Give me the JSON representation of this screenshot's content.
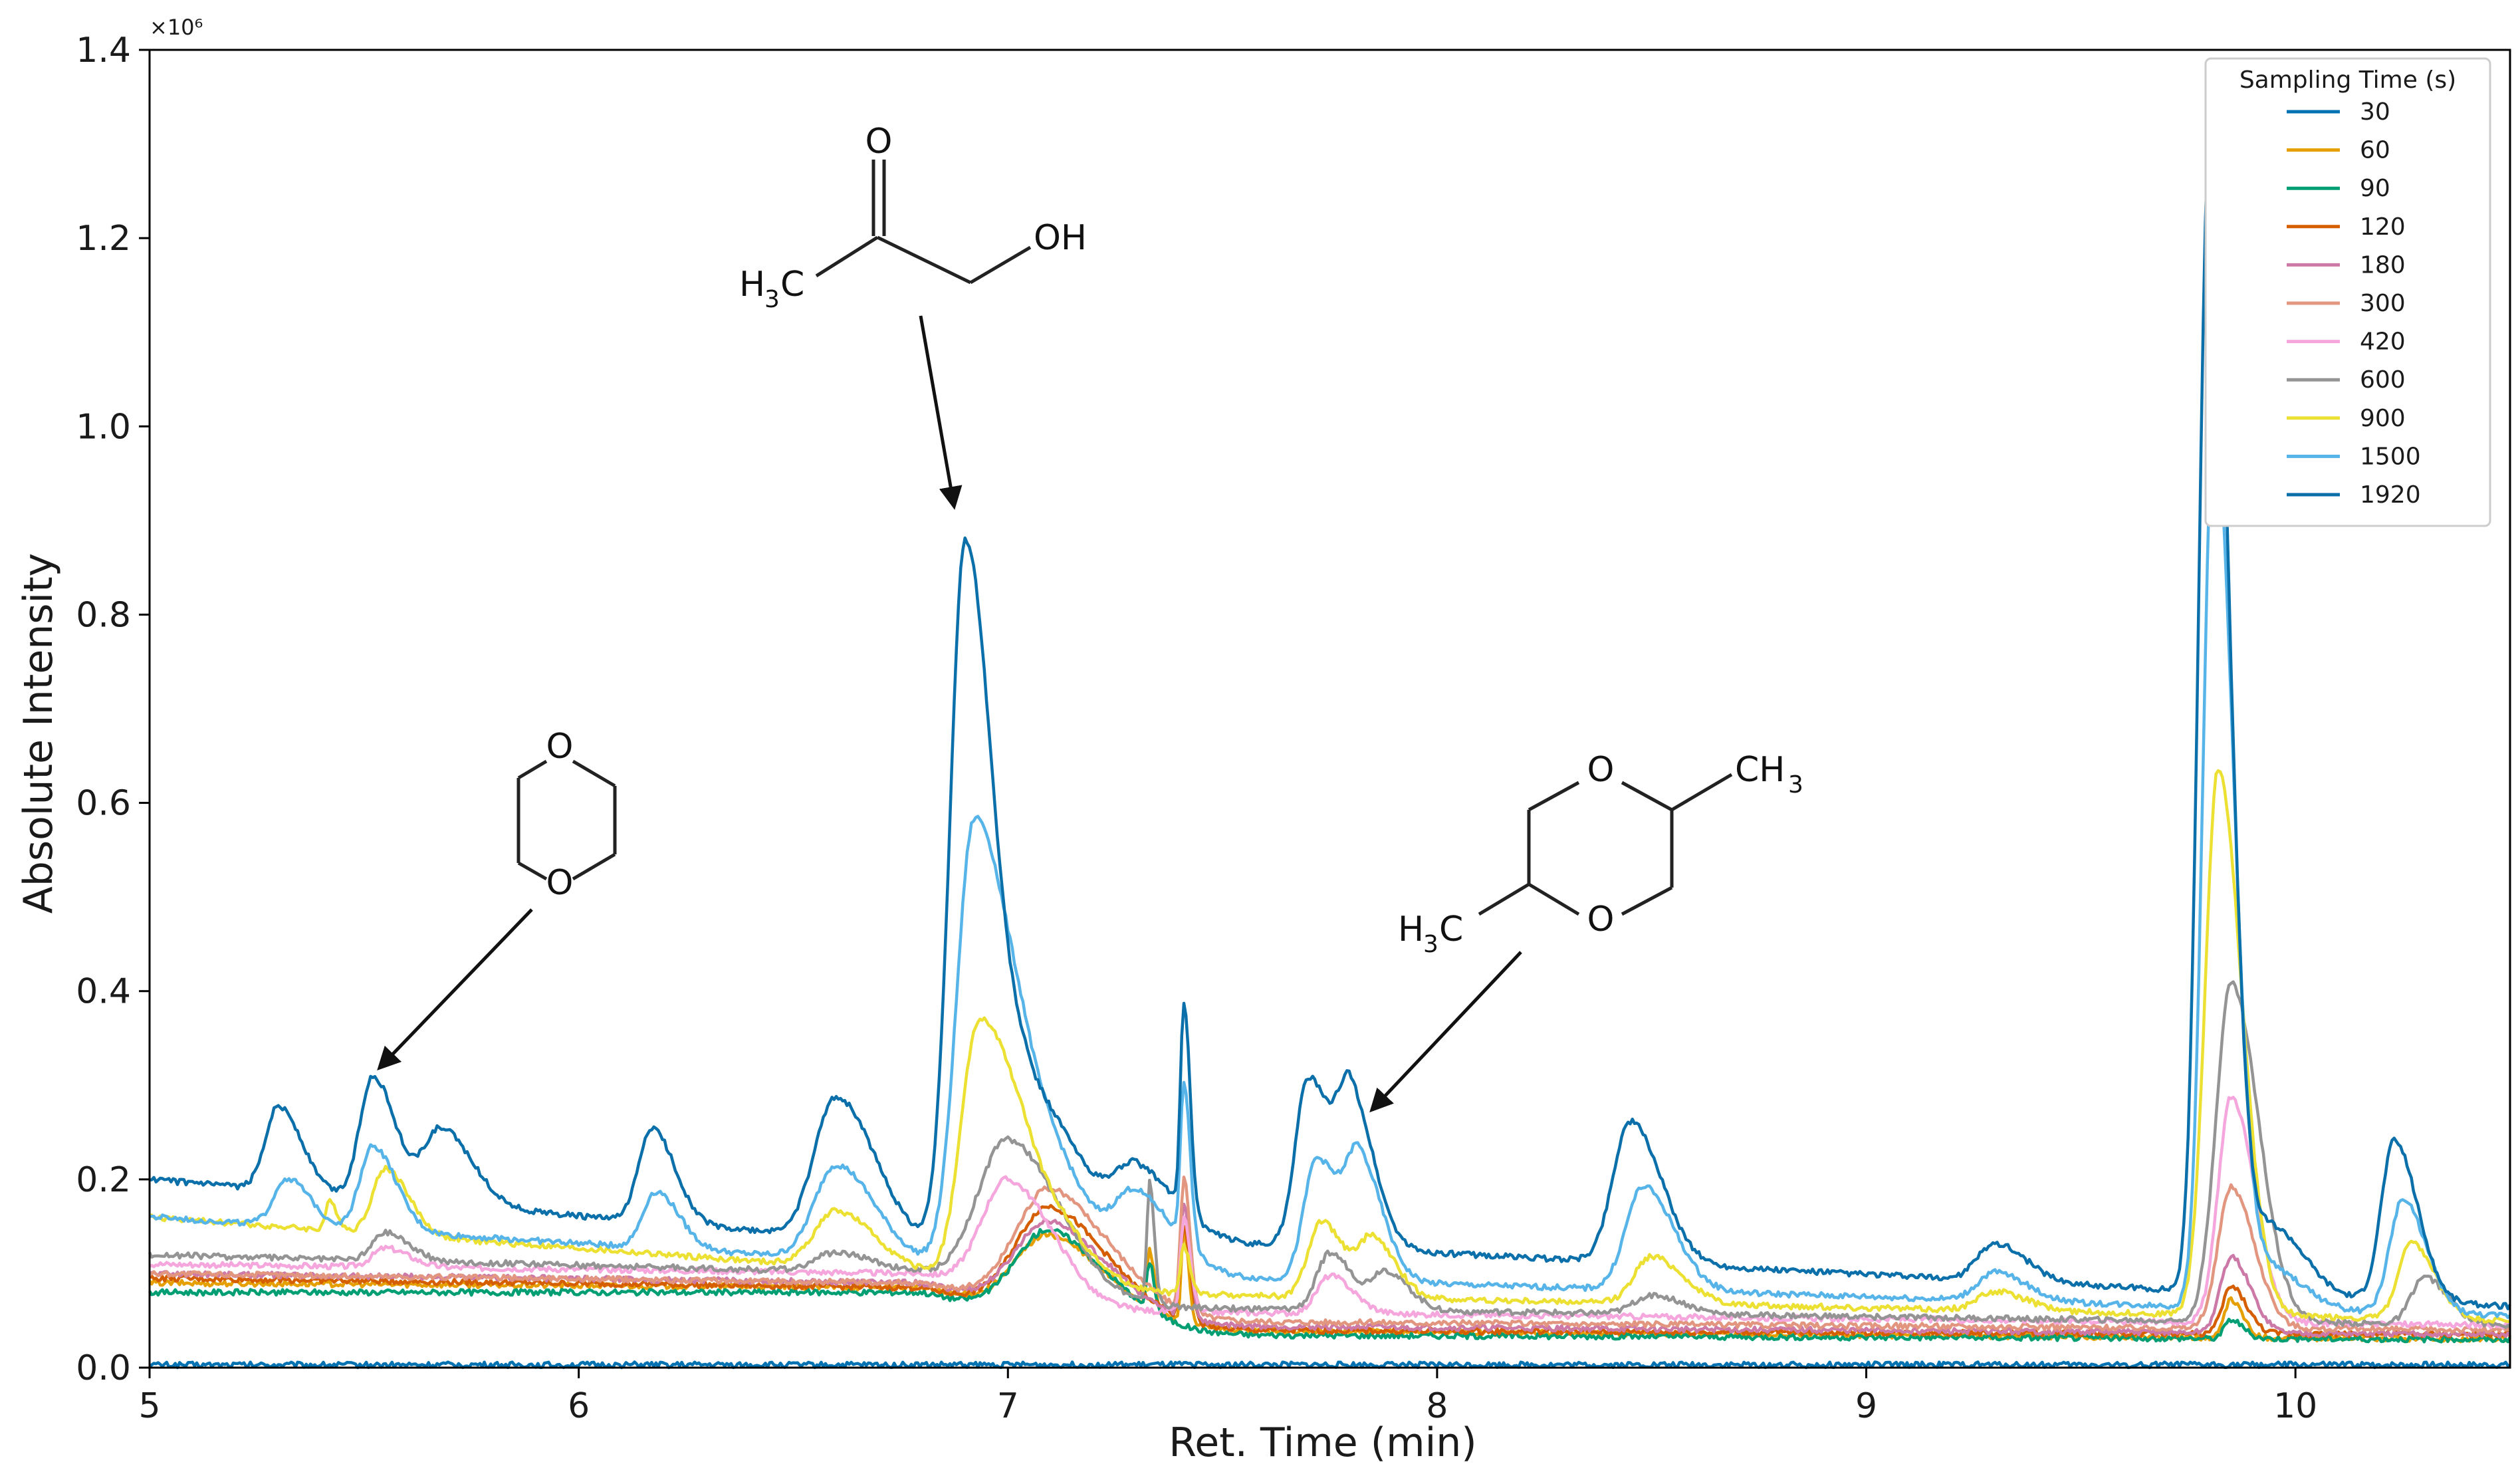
{
  "chart_data": {
    "type": "line",
    "xlabel": "Ret. Time (min)",
    "ylabel": "Absolute Intensity",
    "y_exponent_label": "×10⁶",
    "xlim": [
      5,
      10.5
    ],
    "ylim": [
      0,
      1.4
    ],
    "x_ticks": [
      5,
      6,
      7,
      8,
      9,
      10
    ],
    "x_tick_labels": [
      "5",
      "6",
      "7",
      "8",
      "9",
      "10"
    ],
    "y_ticks": [
      0,
      0.2,
      0.4,
      0.6,
      0.8,
      1.0,
      1.2,
      1.4
    ],
    "y_tick_labels": [
      "0.0",
      "0.2",
      "0.4",
      "0.6",
      "0.8",
      "1.0",
      "1.2",
      "1.4"
    ],
    "grid": false,
    "legend": {
      "title": "Sampling Time (s)",
      "placement": "top-right"
    },
    "series": [
      {
        "name": "30",
        "color": "#0072b2",
        "baseline": [
          [
            5,
            0.003
          ],
          [
            10.5,
            0.003
          ]
        ],
        "peaks": []
      },
      {
        "name": "60",
        "color": "#e69f00",
        "baseline": [
          [
            5,
            0.09
          ],
          [
            6.8,
            0.085
          ],
          [
            7.2,
            0.04
          ],
          [
            10.5,
            0.03
          ]
        ],
        "peaks": [
          [
            7.1,
            0.09,
            0.08
          ],
          [
            7.33,
            0.06,
            0.006
          ],
          [
            7.41,
            0.1,
            0.006
          ],
          [
            9.85,
            0.04,
            0.015
          ]
        ]
      },
      {
        "name": "90",
        "color": "#009e73",
        "baseline": [
          [
            5,
            0.08
          ],
          [
            6.8,
            0.08
          ],
          [
            7.2,
            0.035
          ],
          [
            10.5,
            0.03
          ]
        ],
        "peaks": [
          [
            7.1,
            0.1,
            0.08
          ],
          [
            7.33,
            0.05,
            0.006
          ],
          [
            9.85,
            0.02,
            0.015
          ]
        ]
      },
      {
        "name": "120",
        "color": "#d55e00",
        "baseline": [
          [
            5,
            0.095
          ],
          [
            6.8,
            0.085
          ],
          [
            7.2,
            0.04
          ],
          [
            10.5,
            0.035
          ]
        ],
        "peaks": [
          [
            7.1,
            0.12,
            0.08
          ],
          [
            7.41,
            0.1,
            0.008
          ],
          [
            9.85,
            0.05,
            0.02
          ]
        ]
      },
      {
        "name": "180",
        "color": "#cc79a7",
        "baseline": [
          [
            5,
            0.1
          ],
          [
            6.8,
            0.09
          ],
          [
            7.2,
            0.045
          ],
          [
            10.5,
            0.035
          ]
        ],
        "peaks": [
          [
            7.1,
            0.1,
            0.08
          ],
          [
            7.41,
            0.12,
            0.008
          ],
          [
            9.85,
            0.08,
            0.025
          ]
        ]
      },
      {
        "name": "300",
        "color": "#e3967f",
        "baseline": [
          [
            5,
            0.1
          ],
          [
            6.8,
            0.09
          ],
          [
            7.2,
            0.05
          ],
          [
            10.5,
            0.04
          ]
        ],
        "peaks": [
          [
            7.1,
            0.13,
            0.08
          ],
          [
            7.41,
            0.14,
            0.008
          ],
          [
            9.85,
            0.15,
            0.03
          ]
        ]
      },
      {
        "name": "420",
        "color": "#f5a6dc",
        "baseline": [
          [
            5,
            0.11
          ],
          [
            6.8,
            0.1
          ],
          [
            7.2,
            0.06
          ],
          [
            10.5,
            0.045
          ]
        ],
        "peaks": [
          [
            5.55,
            0.02,
            0.03
          ],
          [
            7.0,
            0.12,
            0.06
          ],
          [
            7.41,
            0.1,
            0.008
          ],
          [
            7.75,
            0.04,
            0.03
          ],
          [
            9.85,
            0.24,
            0.03
          ]
        ]
      },
      {
        "name": "600",
        "color": "#949494",
        "baseline": [
          [
            5,
            0.12
          ],
          [
            6.8,
            0.1
          ],
          [
            7.2,
            0.065
          ],
          [
            10.5,
            0.045
          ]
        ],
        "peaks": [
          [
            5.55,
            0.03,
            0.03
          ],
          [
            6.6,
            0.02,
            0.05
          ],
          [
            7.0,
            0.16,
            0.07
          ],
          [
            7.33,
            0.13,
            0.006
          ],
          [
            7.75,
            0.06,
            0.03
          ],
          [
            7.88,
            0.04,
            0.03
          ],
          [
            8.5,
            0.02,
            0.04
          ],
          [
            9.85,
            0.36,
            0.035
          ],
          [
            10.3,
            0.05,
            0.03
          ]
        ]
      },
      {
        "name": "900",
        "color": "#ece133",
        "baseline": [
          [
            5,
            0.16
          ],
          [
            6.8,
            0.1
          ],
          [
            7.2,
            0.08
          ],
          [
            10.5,
            0.05
          ]
        ],
        "peaks": [
          [
            5.42,
            0.03,
            0.01
          ],
          [
            5.55,
            0.07,
            0.03
          ],
          [
            6.6,
            0.06,
            0.05
          ],
          [
            6.93,
            0.26,
            0.04
          ],
          [
            7.05,
            0.1,
            0.06
          ],
          [
            7.41,
            0.05,
            0.008
          ],
          [
            7.73,
            0.08,
            0.03
          ],
          [
            7.85,
            0.06,
            0.03
          ],
          [
            8.5,
            0.05,
            0.04
          ],
          [
            9.3,
            0.02,
            0.04
          ],
          [
            9.82,
            0.58,
            0.03
          ],
          [
            10.27,
            0.08,
            0.03
          ]
        ]
      },
      {
        "name": "1500",
        "color": "#56b4e9",
        "baseline": [
          [
            5,
            0.16
          ],
          [
            6.8,
            0.11
          ],
          [
            7.2,
            0.1
          ],
          [
            10.5,
            0.055
          ]
        ],
        "peaks": [
          [
            5.32,
            0.05,
            0.03
          ],
          [
            5.52,
            0.09,
            0.03
          ],
          [
            6.18,
            0.06,
            0.03
          ],
          [
            6.6,
            0.1,
            0.05
          ],
          [
            6.92,
            0.46,
            0.04
          ],
          [
            7.05,
            0.16,
            0.06
          ],
          [
            7.3,
            0.08,
            0.05
          ],
          [
            7.41,
            0.17,
            0.008
          ],
          [
            7.72,
            0.13,
            0.03
          ],
          [
            7.82,
            0.12,
            0.03
          ],
          [
            8.48,
            0.11,
            0.04
          ],
          [
            9.3,
            0.03,
            0.04
          ],
          [
            9.81,
            0.95,
            0.025
          ],
          [
            9.95,
            0.04,
            0.04
          ],
          [
            10.25,
            0.12,
            0.03
          ]
        ]
      },
      {
        "name": "1920",
        "color": "#0b6faa",
        "baseline": [
          [
            5,
            0.2
          ],
          [
            6.8,
            0.13
          ],
          [
            7.2,
            0.14
          ],
          [
            10.5,
            0.065
          ]
        ],
        "peaks": [
          [
            5.3,
            0.09,
            0.03
          ],
          [
            5.52,
            0.13,
            0.03
          ],
          [
            5.68,
            0.08,
            0.04
          ],
          [
            6.17,
            0.1,
            0.03
          ],
          [
            6.6,
            0.15,
            0.05
          ],
          [
            6.9,
            0.74,
            0.035
          ],
          [
            7.05,
            0.15,
            0.06
          ],
          [
            7.3,
            0.07,
            0.05
          ],
          [
            7.41,
            0.22,
            0.008
          ],
          [
            7.7,
            0.18,
            0.03
          ],
          [
            7.8,
            0.15,
            0.03
          ],
          [
            8.45,
            0.15,
            0.04
          ],
          [
            9.3,
            0.04,
            0.04
          ],
          [
            9.8,
            1.23,
            0.025
          ],
          [
            9.95,
            0.07,
            0.04
          ],
          [
            10.23,
            0.17,
            0.03
          ]
        ]
      }
    ]
  },
  "annotations": {
    "hydroxyacetone": {
      "h3c": "H",
      "h3c_sub": "3",
      "h3c_c": "C",
      "o": "O",
      "oh": "OH"
    },
    "dioxane": {
      "o_top": "O",
      "o_bottom": "O"
    },
    "dimethyl_dioxane": {
      "o_top": "O",
      "o_bottom": "O",
      "ch3_top": "CH",
      "ch3_top_sub": "3",
      "h3c_left": "H",
      "h3c_left_sub": "3",
      "h3c_left_c": "C"
    }
  }
}
